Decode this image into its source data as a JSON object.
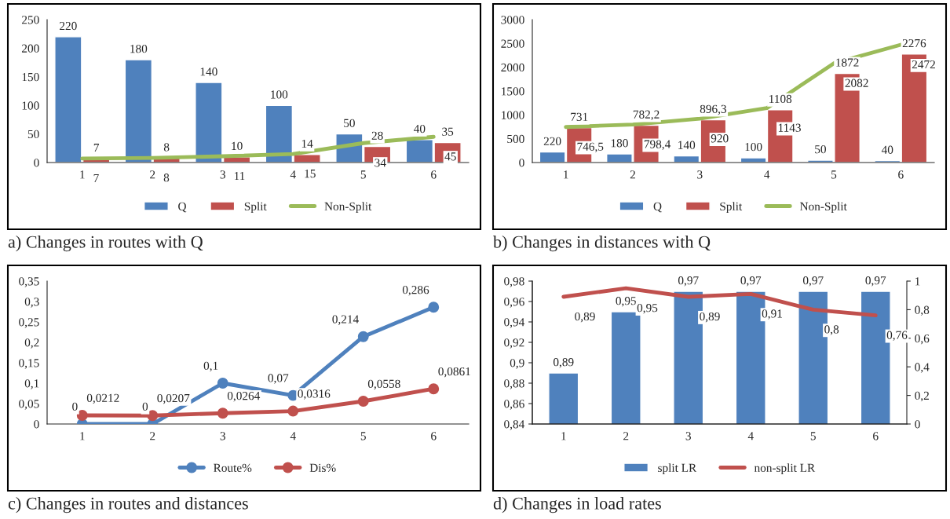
{
  "chart_data": [
    {
      "type": "bar",
      "categories": [
        "1",
        "2",
        "3",
        "4",
        "5",
        "6"
      ],
      "ylim": [
        0,
        250
      ],
      "yticks": [
        0,
        50,
        100,
        150,
        200,
        250
      ],
      "legend": "bottom",
      "grid": false,
      "data_labels": true,
      "annotations": [
        "a) Changes in routes with Q"
      ],
      "series": [
        {
          "name": "Q",
          "color": "#4f81bd",
          "values": [
            220,
            180,
            140,
            100,
            50,
            40
          ]
        },
        {
          "name": "Split",
          "color": "#c0504d",
          "values": [
            7,
            8,
            10,
            14,
            28,
            35
          ]
        },
        {
          "name": "Non-Split",
          "type": "line",
          "color": "#9bbb59",
          "marker": "none",
          "values": [
            7,
            8,
            11,
            15,
            34,
            45
          ]
        }
      ]
    },
    {
      "type": "bar",
      "categories": [
        "1",
        "2",
        "3",
        "4",
        "5",
        "6"
      ],
      "ylim": [
        0,
        3000
      ],
      "yticks": [
        0,
        500,
        1000,
        1500,
        2000,
        2500,
        3000
      ],
      "legend": "bottom",
      "grid": false,
      "annotations": [
        "b) Changes in distances with Q"
      ],
      "series": [
        {
          "name": "Q",
          "color": "#4f81bd",
          "values": [
            220,
            180,
            140,
            100,
            50,
            40
          ],
          "value_labels": [
            "220",
            "180",
            "140",
            "100",
            "50",
            "40"
          ]
        },
        {
          "name": "Split",
          "color": "#c0504d",
          "values": [
            731,
            782.2,
            896.3,
            1108,
            1872,
            2276
          ],
          "value_labels": [
            "731",
            "782,2",
            "896,3",
            "1108",
            "1872",
            "2276"
          ]
        },
        {
          "name": "Non-Split",
          "type": "line",
          "color": "#9bbb59",
          "marker": "none",
          "values": [
            746.5,
            798.4,
            920,
            1143,
            2082,
            2472
          ],
          "value_labels": [
            "746,5",
            "798,4",
            "920",
            "1143",
            "2082",
            "2472"
          ]
        }
      ]
    },
    {
      "type": "line",
      "categories": [
        "1",
        "2",
        "3",
        "4",
        "5",
        "6"
      ],
      "ylim": [
        0,
        0.35
      ],
      "yticks": [
        {
          "value": 0,
          "label": "0"
        },
        {
          "value": 0.05,
          "label": "0,05"
        },
        {
          "value": 0.1,
          "label": "0,1"
        },
        {
          "value": 0.15,
          "label": "0,15"
        },
        {
          "value": 0.2,
          "label": "0,2"
        },
        {
          "value": 0.25,
          "label": "0,25"
        },
        {
          "value": 0.3,
          "label": "0,3"
        },
        {
          "value": 0.35,
          "label": "0,35"
        }
      ],
      "legend": "bottom",
      "grid": false,
      "marker": "circle",
      "annotations": [
        "c) Changes in routes and distances"
      ],
      "series": [
        {
          "name": "Route%",
          "color": "#4f81bd",
          "values": [
            0,
            0,
            0.1,
            0.07,
            0.214,
            0.286
          ],
          "value_labels": [
            "0",
            "0",
            "0,1",
            "0,07",
            "0,214",
            "0,286"
          ]
        },
        {
          "name": "Dis%",
          "color": "#c0504d",
          "values": [
            0.0212,
            0.0207,
            0.0264,
            0.0316,
            0.0558,
            0.0861
          ],
          "value_labels": [
            "0,0212",
            "0,0207",
            "0,0264",
            "0,0316",
            "0,0558",
            "0,0861"
          ]
        }
      ]
    },
    {
      "type": "bar",
      "categories": [
        "1",
        "2",
        "3",
        "4",
        "5",
        "6"
      ],
      "ylim": [
        0.84,
        0.98
      ],
      "yticks": [
        {
          "value": 0.84,
          "label": "0,84"
        },
        {
          "value": 0.86,
          "label": "0,86"
        },
        {
          "value": 0.88,
          "label": "0,88"
        },
        {
          "value": 0.9,
          "label": "0,9"
        },
        {
          "value": 0.92,
          "label": "0,92"
        },
        {
          "value": 0.94,
          "label": "0,94"
        },
        {
          "value": 0.96,
          "label": "0,96"
        },
        {
          "value": 0.98,
          "label": "0,98"
        }
      ],
      "y2lim": [
        0,
        1
      ],
      "y2ticks": [
        0,
        {
          "value": 0.2,
          "label": "0,2"
        },
        {
          "value": 0.4,
          "label": "0,4"
        },
        {
          "value": 0.6,
          "label": "0,6"
        },
        {
          "value": 0.8,
          "label": "0,8"
        },
        1
      ],
      "legend": "bottom",
      "grid": false,
      "annotations": [
        "d) Changes in load rates"
      ],
      "series": [
        {
          "name": "split LR",
          "color": "#4f81bd",
          "values": [
            0.89,
            0.95,
            0.97,
            0.97,
            0.97,
            0.97
          ],
          "value_labels": [
            "0,89",
            "0,95",
            "0,97",
            "0,97",
            "0,97",
            "0,97"
          ]
        },
        {
          "name": "non-split LR",
          "type": "line",
          "axis": "y2",
          "color": "#c0504d",
          "marker": "none",
          "values": [
            0.89,
            0.95,
            0.89,
            0.91,
            0.8,
            0.76
          ],
          "value_labels": [
            "0,89",
            "0,95",
            "0,89",
            "0,91",
            "0,8",
            "0,76"
          ]
        }
      ]
    }
  ]
}
